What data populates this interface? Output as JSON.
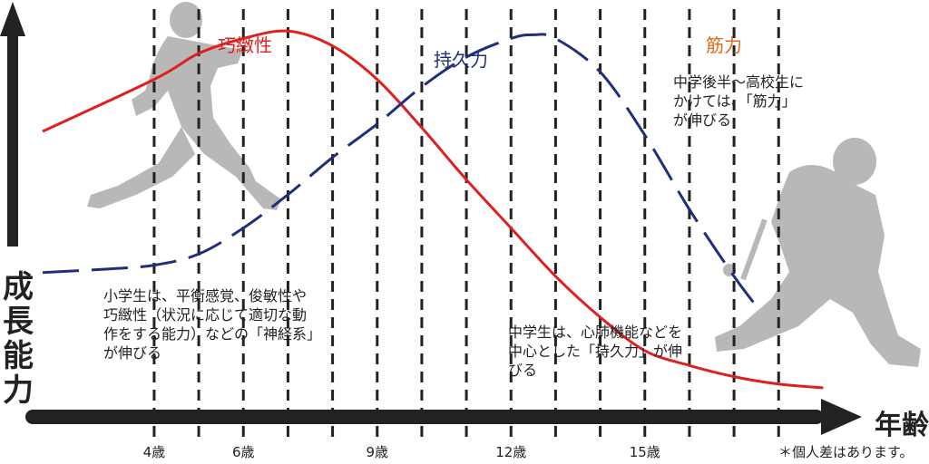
{
  "chart_data": {
    "type": "line",
    "xlabel": "年齢",
    "ylabel": "成長能力",
    "x_ticks": [
      "4歳",
      "6歳",
      "9歳",
      "12歳",
      "15歳"
    ],
    "x_tick_values": [
      4,
      6,
      9,
      12,
      15
    ],
    "xlim": [
      1.5,
      19.5
    ],
    "ylim": [
      0,
      100
    ],
    "grid": "dashed vertical lines at 1-year intervals",
    "series": [
      {
        "name": "巧緻性",
        "color": "#e02020",
        "style": "solid",
        "x": [
          1.5,
          4,
          5,
          6,
          7,
          8,
          9,
          10,
          11,
          12,
          13,
          14,
          15,
          16,
          17,
          18,
          19
        ],
        "y": [
          70,
          84,
          91,
          95,
          97,
          93,
          84,
          71,
          57,
          44,
          31,
          20,
          11,
          7,
          4,
          2,
          1
        ]
      },
      {
        "name": "持久力",
        "color": "#1f2f7a",
        "style": "dashed",
        "x": [
          1.5,
          3,
          4,
          5,
          6,
          7,
          8,
          9,
          10,
          11,
          12,
          12.5,
          13,
          14,
          15,
          16,
          17,
          17.5
        ],
        "y": [
          32,
          33,
          34,
          37,
          44,
          53,
          63,
          72,
          82,
          90,
          95,
          96,
          95,
          86,
          69,
          49,
          31,
          23
        ]
      },
      {
        "name": "筋力",
        "color": "#e06a1a",
        "style": "label-only",
        "x": [],
        "y": []
      }
    ],
    "annotations": [
      "小学生は、平衡感覚、俊敏性や\n巧緻性（状況に応じて適切な動\n作をする能力）などの「神経系」\nが伸びる",
      "中学生は、心肺機能などを\n中心とした「持久力」が伸\nびる",
      "中学後半〜高校生に\nかけては、「筋力」\nが伸びる"
    ],
    "footnote": "＊個人差はあります。"
  },
  "colors": {
    "agility": "#e02020",
    "endurance": "#1f2f7a",
    "muscle": "#e06a1a",
    "axis": "#222222",
    "silhouette": "#b8b8b8"
  }
}
